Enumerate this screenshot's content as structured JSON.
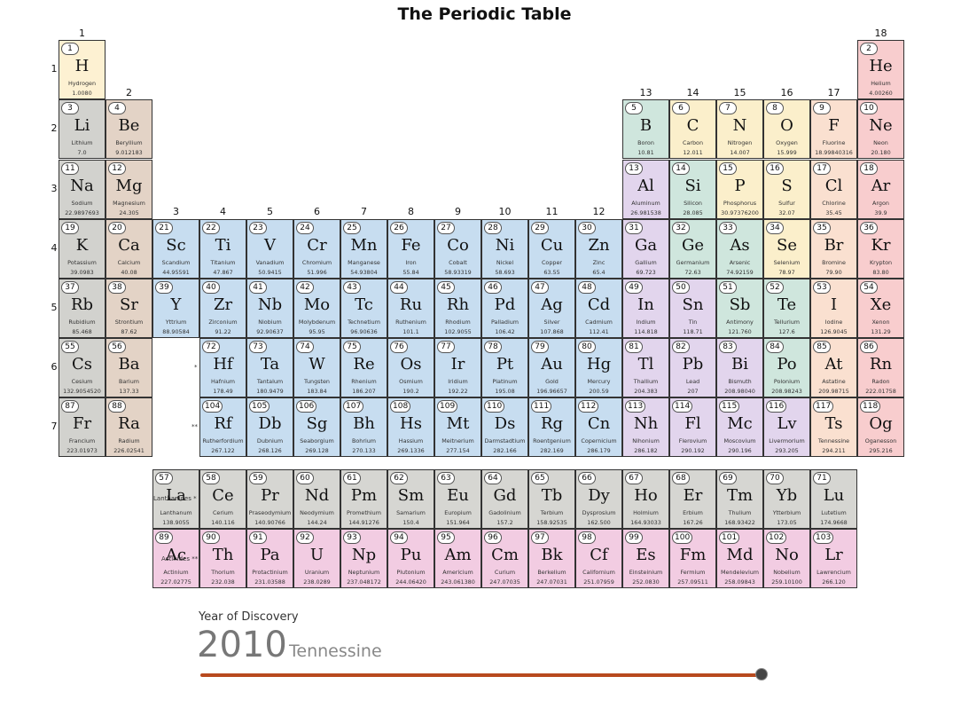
{
  "title": "The Periodic Table",
  "colors": {
    "hydrogen": "#fdf1d2",
    "alkali": "#d2d2ce",
    "alkaline": "#e3d3c6",
    "transition": "#c7ddf0",
    "post": "#e2d5ed",
    "metalloid": "#cfe6dd",
    "nonmetal": "#fbefcb",
    "halogen": "#fae0d0",
    "noble": "#f8cdce",
    "lanthanide": "#d6d6d2",
    "actinide": "#f2cce2",
    "slider_track": "#b84a1e"
  },
  "group_labels": [
    "1",
    "2",
    "3",
    "4",
    "5",
    "6",
    "7",
    "8",
    "9",
    "10",
    "11",
    "12",
    "13",
    "14",
    "15",
    "16",
    "17",
    "18"
  ],
  "period_labels": [
    "1",
    "2",
    "3",
    "4",
    "5",
    "6",
    "7"
  ],
  "series_labels": {
    "lanthanides": "Lanthanides *",
    "actinides": "Actinides **",
    "marker6": "*",
    "marker7": "**"
  },
  "discovery": {
    "caption": "Year of Discovery",
    "year": "2010",
    "element": "Tennessine",
    "slider_fraction": 1.0
  },
  "elements": [
    {
      "n": "1",
      "s": "H",
      "name": "Hydrogen",
      "mass": "1.0080",
      "c": "hydrogen"
    },
    {
      "n": "2",
      "s": "He",
      "name": "Helium",
      "mass": "4.00260",
      "c": "noble"
    },
    {
      "n": "3",
      "s": "Li",
      "name": "Lithium",
      "mass": "7.0",
      "c": "alkali"
    },
    {
      "n": "4",
      "s": "Be",
      "name": "Beryllium",
      "mass": "9.012183",
      "c": "alkaline"
    },
    {
      "n": "5",
      "s": "B",
      "name": "Boron",
      "mass": "10.81",
      "c": "metalloid"
    },
    {
      "n": "6",
      "s": "C",
      "name": "Carbon",
      "mass": "12.011",
      "c": "nonmetal"
    },
    {
      "n": "7",
      "s": "N",
      "name": "Nitrogen",
      "mass": "14.007",
      "c": "nonmetal"
    },
    {
      "n": "8",
      "s": "O",
      "name": "Oxygen",
      "mass": "15.999",
      "c": "nonmetal"
    },
    {
      "n": "9",
      "s": "F",
      "name": "Fluorine",
      "mass": "18.99840316",
      "c": "halogen"
    },
    {
      "n": "10",
      "s": "Ne",
      "name": "Neon",
      "mass": "20.180",
      "c": "noble"
    },
    {
      "n": "11",
      "s": "Na",
      "name": "Sodium",
      "mass": "22.9897693",
      "c": "alkali"
    },
    {
      "n": "12",
      "s": "Mg",
      "name": "Magnesium",
      "mass": "24.305",
      "c": "alkaline"
    },
    {
      "n": "13",
      "s": "Al",
      "name": "Aluminum",
      "mass": "26.981538",
      "c": "post"
    },
    {
      "n": "14",
      "s": "Si",
      "name": "Silicon",
      "mass": "28.085",
      "c": "metalloid"
    },
    {
      "n": "15",
      "s": "P",
      "name": "Phosphorus",
      "mass": "30.97376200",
      "c": "nonmetal"
    },
    {
      "n": "16",
      "s": "S",
      "name": "Sulfur",
      "mass": "32.07",
      "c": "nonmetal"
    },
    {
      "n": "17",
      "s": "Cl",
      "name": "Chlorine",
      "mass": "35.45",
      "c": "halogen"
    },
    {
      "n": "18",
      "s": "Ar",
      "name": "Argon",
      "mass": "39.9",
      "c": "noble"
    },
    {
      "n": "19",
      "s": "K",
      "name": "Potassium",
      "mass": "39.0983",
      "c": "alkali"
    },
    {
      "n": "20",
      "s": "Ca",
      "name": "Calcium",
      "mass": "40.08",
      "c": "alkaline"
    },
    {
      "n": "21",
      "s": "Sc",
      "name": "Scandium",
      "mass": "44.95591",
      "c": "transition"
    },
    {
      "n": "22",
      "s": "Ti",
      "name": "Titanium",
      "mass": "47.867",
      "c": "transition"
    },
    {
      "n": "23",
      "s": "V",
      "name": "Vanadium",
      "mass": "50.9415",
      "c": "transition"
    },
    {
      "n": "24",
      "s": "Cr",
      "name": "Chromium",
      "mass": "51.996",
      "c": "transition"
    },
    {
      "n": "25",
      "s": "Mn",
      "name": "Manganese",
      "mass": "54.93804",
      "c": "transition"
    },
    {
      "n": "26",
      "s": "Fe",
      "name": "Iron",
      "mass": "55.84",
      "c": "transition"
    },
    {
      "n": "27",
      "s": "Co",
      "name": "Cobalt",
      "mass": "58.93319",
      "c": "transition"
    },
    {
      "n": "28",
      "s": "Ni",
      "name": "Nickel",
      "mass": "58.693",
      "c": "transition"
    },
    {
      "n": "29",
      "s": "Cu",
      "name": "Copper",
      "mass": "63.55",
      "c": "transition"
    },
    {
      "n": "30",
      "s": "Zn",
      "name": "Zinc",
      "mass": "65.4",
      "c": "transition"
    },
    {
      "n": "31",
      "s": "Ga",
      "name": "Gallium",
      "mass": "69.723",
      "c": "post"
    },
    {
      "n": "32",
      "s": "Ge",
      "name": "Germanium",
      "mass": "72.63",
      "c": "metalloid"
    },
    {
      "n": "33",
      "s": "As",
      "name": "Arsenic",
      "mass": "74.92159",
      "c": "metalloid"
    },
    {
      "n": "34",
      "s": "Se",
      "name": "Selenium",
      "mass": "78.97",
      "c": "nonmetal"
    },
    {
      "n": "35",
      "s": "Br",
      "name": "Bromine",
      "mass": "79.90",
      "c": "halogen"
    },
    {
      "n": "36",
      "s": "Kr",
      "name": "Krypton",
      "mass": "83.80",
      "c": "noble"
    },
    {
      "n": "37",
      "s": "Rb",
      "name": "Rubidium",
      "mass": "85.468",
      "c": "alkali"
    },
    {
      "n": "38",
      "s": "Sr",
      "name": "Strontium",
      "mass": "87.62",
      "c": "alkaline"
    },
    {
      "n": "39",
      "s": "Y",
      "name": "Yttrium",
      "mass": "88.90584",
      "c": "transition"
    },
    {
      "n": "40",
      "s": "Zr",
      "name": "Zirconium",
      "mass": "91.22",
      "c": "transition"
    },
    {
      "n": "41",
      "s": "Nb",
      "name": "Niobium",
      "mass": "92.90637",
      "c": "transition"
    },
    {
      "n": "42",
      "s": "Mo",
      "name": "Molybdenum",
      "mass": "95.95",
      "c": "transition"
    },
    {
      "n": "43",
      "s": "Tc",
      "name": "Technetium",
      "mass": "96.90636",
      "c": "transition"
    },
    {
      "n": "44",
      "s": "Ru",
      "name": "Ruthenium",
      "mass": "101.1",
      "c": "transition"
    },
    {
      "n": "45",
      "s": "Rh",
      "name": "Rhodium",
      "mass": "102.9055",
      "c": "transition"
    },
    {
      "n": "46",
      "s": "Pd",
      "name": "Palladium",
      "mass": "106.42",
      "c": "transition"
    },
    {
      "n": "47",
      "s": "Ag",
      "name": "Silver",
      "mass": "107.868",
      "c": "transition"
    },
    {
      "n": "48",
      "s": "Cd",
      "name": "Cadmium",
      "mass": "112.41",
      "c": "transition"
    },
    {
      "n": "49",
      "s": "In",
      "name": "Indium",
      "mass": "114.818",
      "c": "post"
    },
    {
      "n": "50",
      "s": "Sn",
      "name": "Tin",
      "mass": "118.71",
      "c": "post"
    },
    {
      "n": "51",
      "s": "Sb",
      "name": "Antimony",
      "mass": "121.760",
      "c": "metalloid"
    },
    {
      "n": "52",
      "s": "Te",
      "name": "Tellurium",
      "mass": "127.6",
      "c": "metalloid"
    },
    {
      "n": "53",
      "s": "I",
      "name": "Iodine",
      "mass": "126.9045",
      "c": "halogen"
    },
    {
      "n": "54",
      "s": "Xe",
      "name": "Xenon",
      "mass": "131.29",
      "c": "noble"
    },
    {
      "n": "55",
      "s": "Cs",
      "name": "Cesium",
      "mass": "132.9054520",
      "c": "alkali"
    },
    {
      "n": "56",
      "s": "Ba",
      "name": "Barium",
      "mass": "137.33",
      "c": "alkaline"
    },
    {
      "n": "72",
      "s": "Hf",
      "name": "Hafnium",
      "mass": "178.49",
      "c": "transition"
    },
    {
      "n": "73",
      "s": "Ta",
      "name": "Tantalum",
      "mass": "180.9479",
      "c": "transition"
    },
    {
      "n": "74",
      "s": "W",
      "name": "Tungsten",
      "mass": "183.84",
      "c": "transition"
    },
    {
      "n": "75",
      "s": "Re",
      "name": "Rhenium",
      "mass": "186.207",
      "c": "transition"
    },
    {
      "n": "76",
      "s": "Os",
      "name": "Osmium",
      "mass": "190.2",
      "c": "transition"
    },
    {
      "n": "77",
      "s": "Ir",
      "name": "Iridium",
      "mass": "192.22",
      "c": "transition"
    },
    {
      "n": "78",
      "s": "Pt",
      "name": "Platinum",
      "mass": "195.08",
      "c": "transition"
    },
    {
      "n": "79",
      "s": "Au",
      "name": "Gold",
      "mass": "196.96657",
      "c": "transition"
    },
    {
      "n": "80",
      "s": "Hg",
      "name": "Mercury",
      "mass": "200.59",
      "c": "transition"
    },
    {
      "n": "81",
      "s": "Tl",
      "name": "Thallium",
      "mass": "204.383",
      "c": "post"
    },
    {
      "n": "82",
      "s": "Pb",
      "name": "Lead",
      "mass": "207",
      "c": "post"
    },
    {
      "n": "83",
      "s": "Bi",
      "name": "Bismuth",
      "mass": "208.98040",
      "c": "post"
    },
    {
      "n": "84",
      "s": "Po",
      "name": "Polonium",
      "mass": "208.98243",
      "c": "metalloid"
    },
    {
      "n": "85",
      "s": "At",
      "name": "Astatine",
      "mass": "209.98715",
      "c": "halogen"
    },
    {
      "n": "86",
      "s": "Rn",
      "name": "Radon",
      "mass": "222.01758",
      "c": "noble"
    },
    {
      "n": "87",
      "s": "Fr",
      "name": "Francium",
      "mass": "223.01973",
      "c": "alkali"
    },
    {
      "n": "88",
      "s": "Ra",
      "name": "Radium",
      "mass": "226.02541",
      "c": "alkaline"
    },
    {
      "n": "104",
      "s": "Rf",
      "name": "Rutherfordium",
      "mass": "267.122",
      "c": "transition"
    },
    {
      "n": "105",
      "s": "Db",
      "name": "Dubnium",
      "mass": "268.126",
      "c": "transition"
    },
    {
      "n": "106",
      "s": "Sg",
      "name": "Seaborgium",
      "mass": "269.128",
      "c": "transition"
    },
    {
      "n": "107",
      "s": "Bh",
      "name": "Bohrium",
      "mass": "270.133",
      "c": "transition"
    },
    {
      "n": "108",
      "s": "Hs",
      "name": "Hassium",
      "mass": "269.1336",
      "c": "transition"
    },
    {
      "n": "109",
      "s": "Mt",
      "name": "Meitnerium",
      "mass": "277.154",
      "c": "transition"
    },
    {
      "n": "110",
      "s": "Ds",
      "name": "Darmstadtium",
      "mass": "282.166",
      "c": "transition"
    },
    {
      "n": "111",
      "s": "Rg",
      "name": "Roentgenium",
      "mass": "282.169",
      "c": "transition"
    },
    {
      "n": "112",
      "s": "Cn",
      "name": "Copernicium",
      "mass": "286.179",
      "c": "transition"
    },
    {
      "n": "113",
      "s": "Nh",
      "name": "Nihonium",
      "mass": "286.182",
      "c": "post"
    },
    {
      "n": "114",
      "s": "Fl",
      "name": "Flerovium",
      "mass": "290.192",
      "c": "post"
    },
    {
      "n": "115",
      "s": "Mc",
      "name": "Moscovium",
      "mass": "290.196",
      "c": "post"
    },
    {
      "n": "116",
      "s": "Lv",
      "name": "Livermorium",
      "mass": "293.205",
      "c": "post"
    },
    {
      "n": "117",
      "s": "Ts",
      "name": "Tennessine",
      "mass": "294.211",
      "c": "halogen"
    },
    {
      "n": "118",
      "s": "Og",
      "name": "Oganesson",
      "mass": "295.216",
      "c": "noble"
    },
    {
      "n": "57",
      "s": "La",
      "name": "Lanthanum",
      "mass": "138.9055",
      "c": "lanthanide"
    },
    {
      "n": "58",
      "s": "Ce",
      "name": "Cerium",
      "mass": "140.116",
      "c": "lanthanide"
    },
    {
      "n": "59",
      "s": "Pr",
      "name": "Praseodymium",
      "mass": "140.90766",
      "c": "lanthanide"
    },
    {
      "n": "60",
      "s": "Nd",
      "name": "Neodymium",
      "mass": "144.24",
      "c": "lanthanide"
    },
    {
      "n": "61",
      "s": "Pm",
      "name": "Promethium",
      "mass": "144.91276",
      "c": "lanthanide"
    },
    {
      "n": "62",
      "s": "Sm",
      "name": "Samarium",
      "mass": "150.4",
      "c": "lanthanide"
    },
    {
      "n": "63",
      "s": "Eu",
      "name": "Europium",
      "mass": "151.964",
      "c": "lanthanide"
    },
    {
      "n": "64",
      "s": "Gd",
      "name": "Gadolinium",
      "mass": "157.2",
      "c": "lanthanide"
    },
    {
      "n": "65",
      "s": "Tb",
      "name": "Terbium",
      "mass": "158.92535",
      "c": "lanthanide"
    },
    {
      "n": "66",
      "s": "Dy",
      "name": "Dysprosium",
      "mass": "162.500",
      "c": "lanthanide"
    },
    {
      "n": "67",
      "s": "Ho",
      "name": "Holmium",
      "mass": "164.93033",
      "c": "lanthanide"
    },
    {
      "n": "68",
      "s": "Er",
      "name": "Erbium",
      "mass": "167.26",
      "c": "lanthanide"
    },
    {
      "n": "69",
      "s": "Tm",
      "name": "Thulium",
      "mass": "168.93422",
      "c": "lanthanide"
    },
    {
      "n": "70",
      "s": "Yb",
      "name": "Ytterbium",
      "mass": "173.05",
      "c": "lanthanide"
    },
    {
      "n": "71",
      "s": "Lu",
      "name": "Lutetium",
      "mass": "174.9668",
      "c": "lanthanide"
    },
    {
      "n": "89",
      "s": "Ac",
      "name": "Actinium",
      "mass": "227.02775",
      "c": "actinide"
    },
    {
      "n": "90",
      "s": "Th",
      "name": "Thorium",
      "mass": "232.038",
      "c": "actinide"
    },
    {
      "n": "91",
      "s": "Pa",
      "name": "Protactinium",
      "mass": "231.03588",
      "c": "actinide"
    },
    {
      "n": "92",
      "s": "U",
      "name": "Uranium",
      "mass": "238.0289",
      "c": "actinide"
    },
    {
      "n": "93",
      "s": "Np",
      "name": "Neptunium",
      "mass": "237.048172",
      "c": "actinide"
    },
    {
      "n": "94",
      "s": "Pu",
      "name": "Plutonium",
      "mass": "244.06420",
      "c": "actinide"
    },
    {
      "n": "95",
      "s": "Am",
      "name": "Americium",
      "mass": "243.061380",
      "c": "actinide"
    },
    {
      "n": "96",
      "s": "Cm",
      "name": "Curium",
      "mass": "247.07035",
      "c": "actinide"
    },
    {
      "n": "97",
      "s": "Bk",
      "name": "Berkelium",
      "mass": "247.07031",
      "c": "actinide"
    },
    {
      "n": "98",
      "s": "Cf",
      "name": "Californium",
      "mass": "251.07959",
      "c": "actinide"
    },
    {
      "n": "99",
      "s": "Es",
      "name": "Einsteinium",
      "mass": "252.0830",
      "c": "actinide"
    },
    {
      "n": "100",
      "s": "Fm",
      "name": "Fermium",
      "mass": "257.09511",
      "c": "actinide"
    },
    {
      "n": "101",
      "s": "Md",
      "name": "Mendelevium",
      "mass": "258.09843",
      "c": "actinide"
    },
    {
      "n": "102",
      "s": "No",
      "name": "Nobelium",
      "mass": "259.10100",
      "c": "actinide"
    },
    {
      "n": "103",
      "s": "Lr",
      "name": "Lawrencium",
      "mass": "266.120",
      "c": "actinide"
    }
  ]
}
